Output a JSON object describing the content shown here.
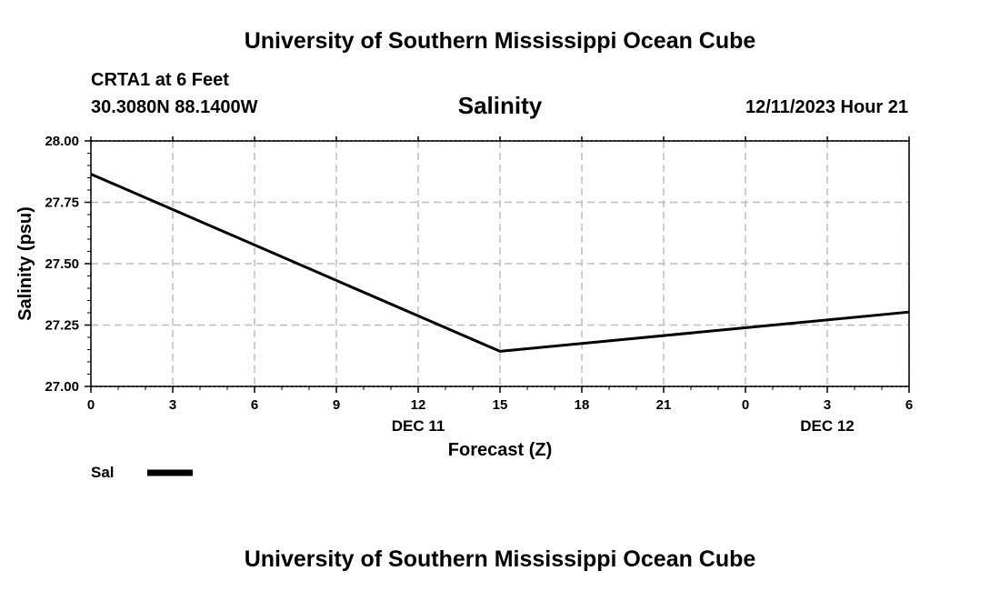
{
  "page": {
    "title_top": "University of Southern Mississippi Ocean Cube",
    "title_bottom": "University of Southern Mississippi Ocean Cube",
    "station": "CRTA1 at 6 Feet",
    "coordinates": "30.3080N  88.1400W",
    "date": "12/11/2023 Hour 21"
  },
  "chart_data": {
    "type": "line",
    "title": "Salinity",
    "xlabel": "Forecast (Z)",
    "ylabel": "Salinity (psu)",
    "x": [
      0,
      3,
      6,
      9,
      12,
      15,
      18,
      21,
      24,
      27,
      30
    ],
    "x_tick_labels": [
      "0",
      "3",
      "6",
      "9",
      "12",
      "15",
      "18",
      "21",
      "0",
      "3",
      "6"
    ],
    "x_date_labels": [
      {
        "x": 12,
        "label": "DEC 11"
      },
      {
        "x": 27,
        "label": "DEC 12"
      }
    ],
    "xlim": [
      0,
      30
    ],
    "ylim": [
      27.0,
      28.0
    ],
    "y_ticks": [
      27.0,
      27.25,
      27.5,
      27.75,
      28.0
    ],
    "y_tick_labels": [
      "27.00",
      "27.25",
      "27.50",
      "27.75",
      "28.00"
    ],
    "grid": true,
    "series": [
      {
        "name": "Sal",
        "color": "#000000",
        "x": [
          0,
          15,
          30
        ],
        "values": [
          27.865,
          27.143,
          27.303
        ]
      }
    ],
    "legend": {
      "position": "bottom-left",
      "label": "Sal"
    }
  }
}
